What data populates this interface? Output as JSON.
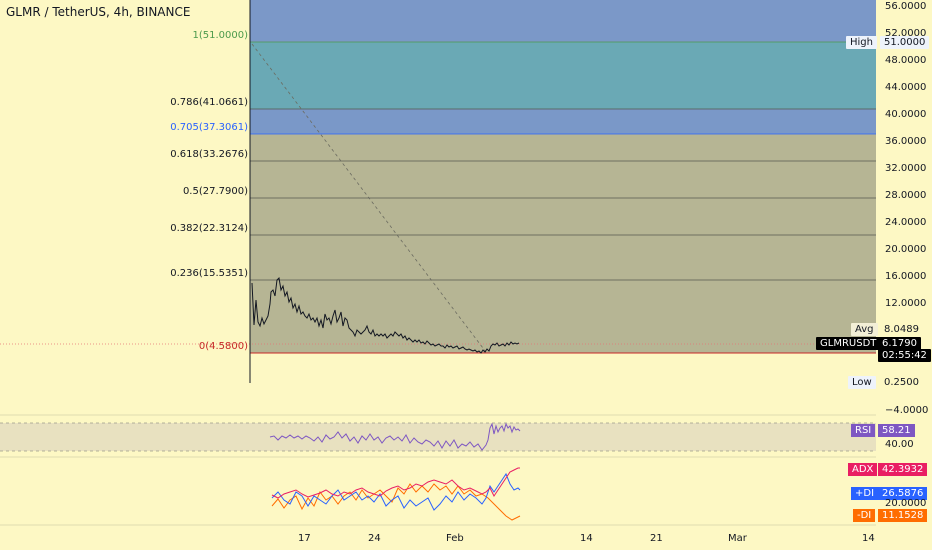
{
  "header": {
    "title": "GLMR / TetherUS, 4h, BINANCE"
  },
  "fib_levels": [
    {
      "label": "1(51.0000)",
      "color": "#4c9a4c"
    },
    {
      "label": "0.786(41.0661)",
      "color": "#131722"
    },
    {
      "label": "0.705(37.3061)",
      "color": "#2962ff"
    },
    {
      "label": "0.618(33.2676)",
      "color": "#131722"
    },
    {
      "label": "0.5(27.7900)",
      "color": "#131722"
    },
    {
      "label": "0.382(22.3124)",
      "color": "#131722"
    },
    {
      "label": "0.236(15.5351)",
      "color": "#131722"
    },
    {
      "label": "0(4.5800)",
      "color": "#c62828"
    }
  ],
  "price_axis": {
    "ticks": [
      "56.0000",
      "52.0000",
      "48.0000",
      "44.0000",
      "40.0000",
      "36.0000",
      "32.0000",
      "28.0000",
      "24.0000",
      "20.0000",
      "16.0000",
      "12.0000",
      "−4.0000"
    ],
    "high": {
      "label": "High",
      "value": "51.0000"
    },
    "avg": {
      "label": "Avg",
      "value": "8.0489"
    },
    "low": {
      "label": "Low",
      "value": "0.2500"
    },
    "current": {
      "symbol": "GLMRUSDT",
      "price": "6.1790",
      "countdown": "02:55:42"
    }
  },
  "rsi": {
    "name": "RSI",
    "value": "58.21",
    "level": "40.00"
  },
  "adx": {
    "adx": {
      "name": "ADX",
      "value": "42.3932",
      "color": "#e91e63"
    },
    "plus_di": {
      "name": "+DI",
      "value": "26.5876",
      "color": "#2962ff"
    },
    "minus_di": {
      "name": "-DI",
      "value": "11.1528",
      "color": "#ff6d00"
    },
    "level": "20.0000"
  },
  "time_axis": {
    "labels": [
      "17",
      "24",
      "Feb",
      "14",
      "21",
      "Mar",
      "14"
    ]
  },
  "colors": {
    "background": "#fdf8c4",
    "fib_upper": "#7b98c8",
    "fib_teal": "#6aa9b5",
    "fib_blue": "#7a98c8",
    "fib_gray": "#b6b594",
    "price_line": "#131722"
  }
}
